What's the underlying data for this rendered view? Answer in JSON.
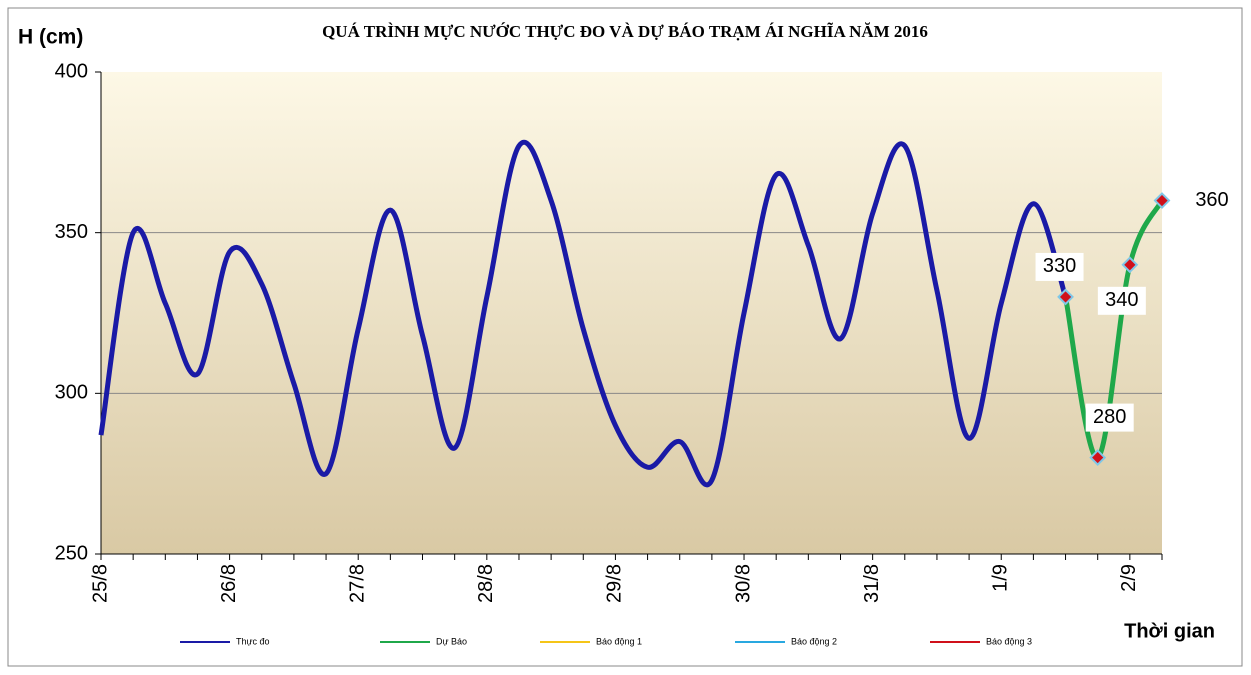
{
  "chart_data": {
    "type": "line",
    "title": "QUÁ TRÌNH MỰC NƯỚC THỰC ĐO VÀ DỰ BÁO TRẠM ÁI NGHĨA NĂM 2016",
    "y_label": "H (cm)",
    "x_label": "Thời gian",
    "categories": [
      "25/8",
      null,
      null,
      null,
      "26/8",
      null,
      null,
      null,
      "27/8",
      null,
      null,
      null,
      "28/8",
      null,
      null,
      null,
      "29/8",
      null,
      null,
      null,
      "30/8",
      null,
      null,
      null,
      "31/8",
      null,
      null,
      null,
      "1/9",
      null,
      null,
      null,
      "2/9",
      null
    ],
    "ylim": [
      250,
      400
    ],
    "yticks": [
      250,
      300,
      350,
      400
    ],
    "grid": true,
    "series": [
      {
        "name": "Thực đo",
        "color": "#1a1aa6",
        "values": [
          287,
          350,
          328,
          306,
          344,
          334,
          303,
          275,
          320,
          357,
          318,
          283,
          330,
          377,
          360,
          320,
          290,
          277,
          285,
          273,
          325,
          368,
          346,
          317,
          356,
          377,
          332,
          286,
          328,
          359,
          330,
          null,
          null,
          null
        ]
      },
      {
        "name": "Dự Báo",
        "color": "#1fa84a",
        "values": [
          null,
          null,
          null,
          null,
          null,
          null,
          null,
          null,
          null,
          null,
          null,
          null,
          null,
          null,
          null,
          null,
          null,
          null,
          null,
          null,
          null,
          null,
          null,
          null,
          null,
          null,
          null,
          null,
          null,
          null,
          330,
          280,
          340,
          360
        ]
      },
      {
        "name": "Báo động 1",
        "color": "#f5c518",
        "values": [
          null,
          null,
          null,
          null,
          null,
          null,
          null,
          null,
          null,
          null,
          null,
          null,
          null,
          null,
          null,
          null,
          null,
          null,
          null,
          null,
          null,
          null,
          null,
          null,
          null,
          null,
          null,
          null,
          null,
          null,
          null,
          null,
          null,
          null
        ]
      },
      {
        "name": "Báo động 2",
        "color": "#29a8e0",
        "values": [
          null,
          null,
          null,
          null,
          null,
          null,
          null,
          null,
          null,
          null,
          null,
          null,
          null,
          null,
          null,
          null,
          null,
          null,
          null,
          null,
          null,
          null,
          null,
          null,
          null,
          null,
          null,
          null,
          null,
          null,
          null,
          null,
          null,
          null
        ]
      },
      {
        "name": "Báo động 3",
        "color": "#d0101a",
        "values": [
          null,
          null,
          null,
          null,
          null,
          null,
          null,
          null,
          null,
          null,
          null,
          null,
          null,
          null,
          null,
          null,
          null,
          null,
          null,
          null,
          null,
          null,
          null,
          null,
          null,
          null,
          null,
          null,
          null,
          null,
          null,
          null,
          null,
          null
        ]
      }
    ]
  }
}
